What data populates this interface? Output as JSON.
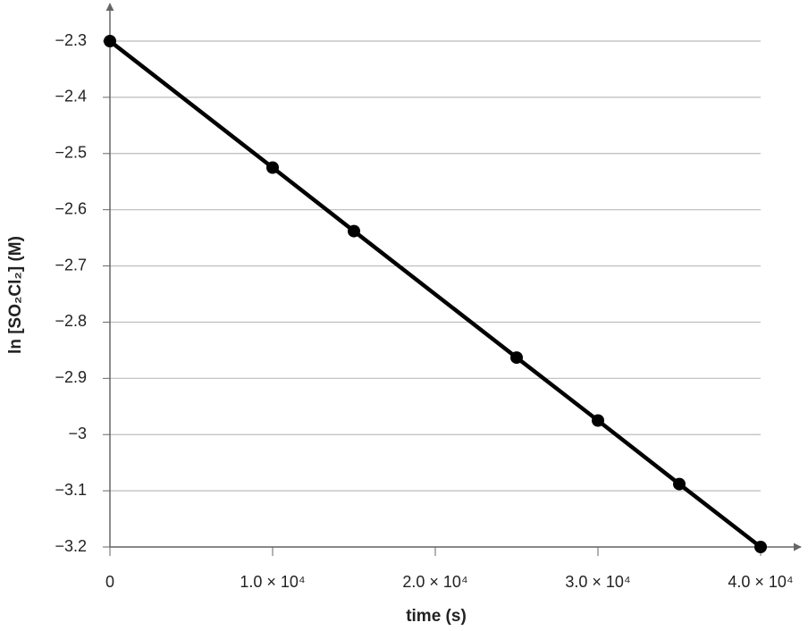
{
  "chart_data": {
    "type": "line",
    "xlabel": "time (s)",
    "ylabel": "ln [SO₂Cl₂] (M)",
    "x": [
      0,
      10000,
      15000,
      25000,
      30000,
      35000,
      40000
    ],
    "values": [
      -2.3,
      -2.525,
      -2.638,
      -2.863,
      -2.975,
      -3.088,
      -3.2
    ],
    "color": "#000000",
    "xlim": [
      0,
      40000
    ],
    "ylim": [
      -3.2,
      -2.3
    ],
    "xticks": [
      0,
      {
        "value": 10000,
        "label": "1.0 × 10⁴"
      },
      {
        "value": 20000,
        "label": "2.0 × 10⁴"
      },
      {
        "value": 30000,
        "label": "3.0 × 10⁴"
      },
      {
        "value": 40000,
        "label": "4.0 × 10⁴"
      }
    ],
    "yticks": [
      {
        "value": -3.2,
        "label": "−3.2"
      },
      {
        "value": -3.1,
        "label": "−3.1"
      },
      {
        "value": -3,
        "label": "−3"
      },
      {
        "value": -2.9,
        "label": "−2.9"
      },
      {
        "value": -2.8,
        "label": "−2.8"
      },
      {
        "value": -2.7,
        "label": "−2.7"
      },
      {
        "value": -2.6,
        "label": "−2.6"
      },
      {
        "value": -2.5,
        "label": "−2.5"
      },
      {
        "value": -2.4,
        "label": "−2.4"
      },
      {
        "value": -2.3,
        "label": "−2.3"
      }
    ],
    "grid": true
  }
}
